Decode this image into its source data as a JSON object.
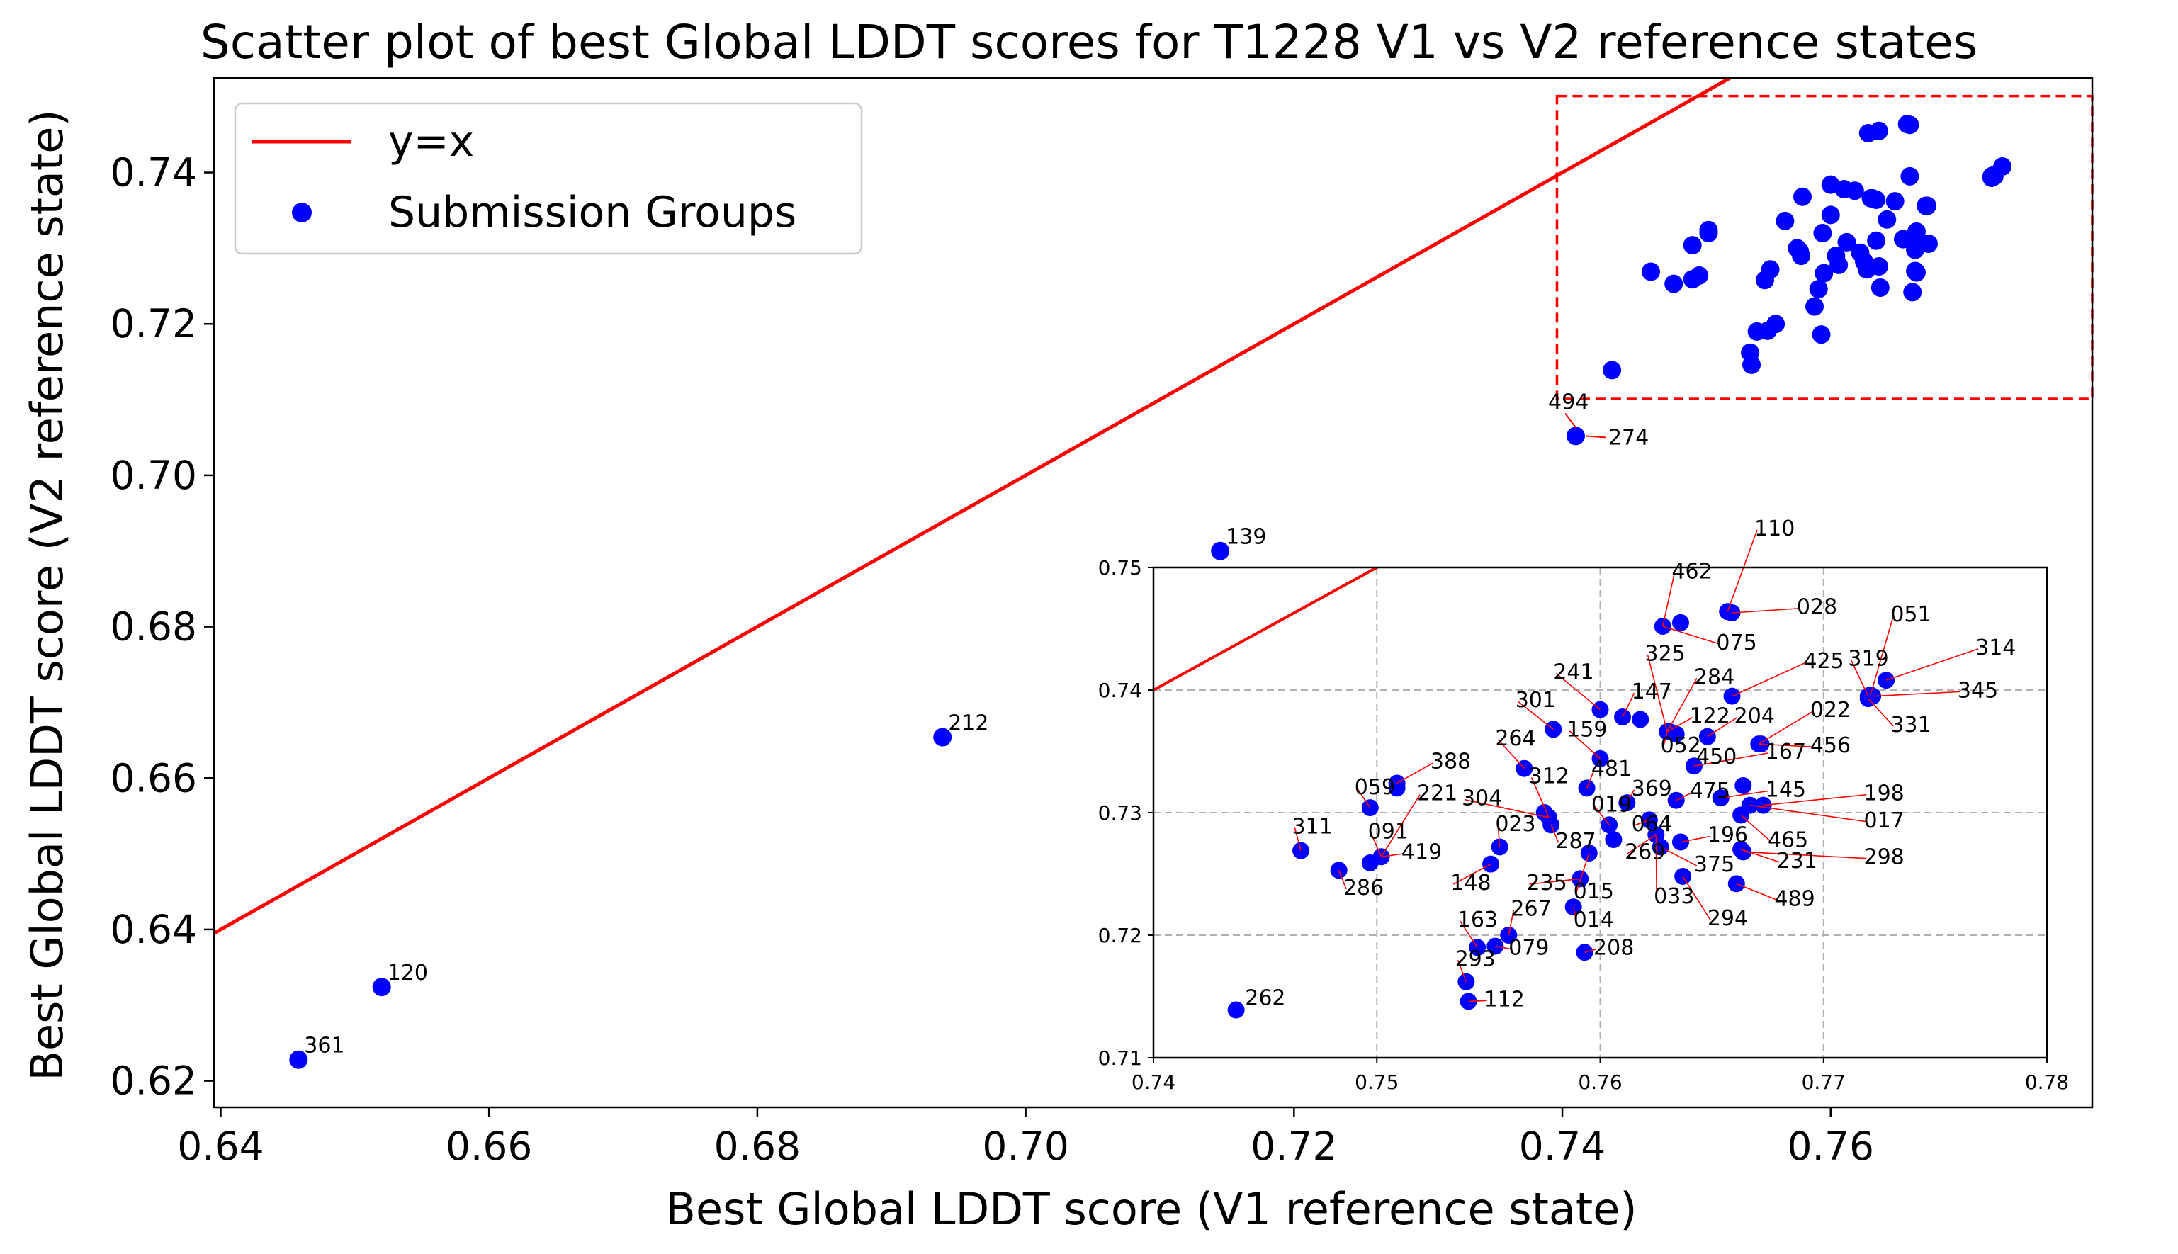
{
  "colors": {
    "points": "#0000ff",
    "line": "#ff0000",
    "box": "#ff0000",
    "grid": "#b0b0b0",
    "annot": "#ff0000"
  },
  "chart_data": {
    "type": "scatter",
    "title": "Scatter plot of best Global LDDT scores for T1228 V1 vs V2 reference states",
    "xlabel": "Best Global LDDT score (V1 reference state)",
    "ylabel": "Best Global LDDT score (V2 reference state)",
    "xlim": [
      0.6395,
      0.7795
    ],
    "ylim": [
      0.6165,
      0.7525
    ],
    "xticks": [
      0.64,
      0.66,
      0.68,
      0.7,
      0.72,
      0.74,
      0.76
    ],
    "yticks": [
      0.62,
      0.64,
      0.66,
      0.68,
      0.7,
      0.72,
      0.74
    ],
    "tick_format": 2,
    "legend": {
      "position": "top-left",
      "line_label": "y=x",
      "points_label": "Submission Groups"
    },
    "zoom_box": {
      "x": [
        0.7396,
        0.7795
      ],
      "y": [
        0.7101,
        0.7501
      ]
    },
    "outliers": [
      {
        "label": "361",
        "x": 0.6458,
        "y": 0.6228
      },
      {
        "label": "120",
        "x": 0.652,
        "y": 0.6324
      },
      {
        "label": "212",
        "x": 0.6938,
        "y": 0.6654
      },
      {
        "label": "139",
        "x": 0.7145,
        "y": 0.69
      },
      {
        "label": "274",
        "x": 0.741,
        "y": 0.7052
      }
    ],
    "outlier_extra_labels": [
      {
        "label": "494",
        "x": 0.74,
        "y": 0.708
      }
    ],
    "inset": {
      "xlim": [
        0.74,
        0.78
      ],
      "ylim": [
        0.71,
        0.75
      ],
      "xticks": [
        0.74,
        0.75,
        0.76,
        0.77,
        0.78
      ],
      "yticks": [
        0.71,
        0.72,
        0.73,
        0.74,
        0.75
      ],
      "grid": true,
      "points": [
        {
          "label": "262",
          "x": 0.7437,
          "y": 0.7139
        },
        {
          "label": "311",
          "x": 0.7466,
          "y": 0.7269
        },
        {
          "label": "286",
          "x": 0.7483,
          "y": 0.7253
        },
        {
          "label": "059",
          "x": 0.7497,
          "y": 0.7304
        },
        {
          "label": "091",
          "x": 0.7497,
          "y": 0.7259
        },
        {
          "label": "419",
          "x": 0.7502,
          "y": 0.7264
        },
        {
          "label": "388",
          "x": 0.7509,
          "y": 0.7324
        },
        {
          "label": "221",
          "x": 0.7509,
          "y": 0.732
        },
        {
          "label": "293",
          "x": 0.754,
          "y": 0.7162
        },
        {
          "label": "112",
          "x": 0.7541,
          "y": 0.7146
        },
        {
          "label": "163",
          "x": 0.7545,
          "y": 0.719
        },
        {
          "label": "079",
          "x": 0.7553,
          "y": 0.7191
        },
        {
          "label": "267",
          "x": 0.7559,
          "y": 0.72
        },
        {
          "label": "148",
          "x": 0.7551,
          "y": 0.7258
        },
        {
          "label": "023",
          "x": 0.7555,
          "y": 0.7272
        },
        {
          "label": "264",
          "x": 0.7566,
          "y": 0.7336
        },
        {
          "label": "312",
          "x": 0.7575,
          "y": 0.73
        },
        {
          "label": "304",
          "x": 0.7577,
          "y": 0.7296
        },
        {
          "label": "287",
          "x": 0.7578,
          "y": 0.729
        },
        {
          "label": "301",
          "x": 0.7579,
          "y": 0.7368
        },
        {
          "label": "014",
          "x": 0.7588,
          "y": 0.7223
        },
        {
          "label": "235",
          "x": 0.7591,
          "y": 0.7246
        },
        {
          "label": "208",
          "x": 0.7593,
          "y": 0.7186
        },
        {
          "label": "481",
          "x": 0.7594,
          "y": 0.732
        },
        {
          "label": "015",
          "x": 0.7595,
          "y": 0.7267
        },
        {
          "label": "241",
          "x": 0.76,
          "y": 0.7384
        },
        {
          "label": "159",
          "x": 0.76,
          "y": 0.7344
        },
        {
          "label": "019",
          "x": 0.7604,
          "y": 0.729
        },
        {
          "label": "369",
          "x": 0.7606,
          "y": 0.7278
        },
        {
          "label": "147",
          "x": 0.761,
          "y": 0.7378
        },
        {
          "label": "269",
          "x": 0.7612,
          "y": 0.7308
        },
        {
          "label": "325",
          "x": 0.7618,
          "y": 0.7376
        },
        {
          "label": "064",
          "x": 0.7622,
          "y": 0.7294
        },
        {
          "label": "033",
          "x": 0.7625,
          "y": 0.7282
        },
        {
          "label": "052",
          "x": 0.763,
          "y": 0.7366
        },
        {
          "label": "284",
          "x": 0.7631,
          "y": 0.7366
        },
        {
          "label": "375",
          "x": 0.7627,
          "y": 0.7272
        },
        {
          "label": "122",
          "x": 0.7634,
          "y": 0.7364
        },
        {
          "label": "475",
          "x": 0.7634,
          "y": 0.731
        },
        {
          "label": "075",
          "x": 0.7628,
          "y": 0.7452
        },
        {
          "label": "462",
          "x": 0.7636,
          "y": 0.7455
        },
        {
          "label": "196",
          "x": 0.7636,
          "y": 0.7276
        },
        {
          "label": "294",
          "x": 0.7637,
          "y": 0.7248
        },
        {
          "label": "450",
          "x": 0.7642,
          "y": 0.7338
        },
        {
          "label": "204",
          "x": 0.7648,
          "y": 0.7362
        },
        {
          "label": "145",
          "x": 0.7654,
          "y": 0.7312
        },
        {
          "label": "465",
          "x": 0.7663,
          "y": 0.7298
        },
        {
          "label": "110",
          "x": 0.7657,
          "y": 0.7464
        },
        {
          "label": "028",
          "x": 0.7659,
          "y": 0.7463
        },
        {
          "label": "425",
          "x": 0.7659,
          "y": 0.7395
        },
        {
          "label": "489",
          "x": 0.7661,
          "y": 0.7242
        },
        {
          "label": "231",
          "x": 0.7663,
          "y": 0.727
        },
        {
          "label": "167",
          "x": 0.7664,
          "y": 0.7322
        },
        {
          "label": "017",
          "x": 0.7667,
          "y": 0.7306
        },
        {
          "label": "456",
          "x": 0.7671,
          "y": 0.7356
        },
        {
          "label": "022",
          "x": 0.7672,
          "y": 0.7356
        },
        {
          "label": "198",
          "x": 0.7673,
          "y": 0.7306
        },
        {
          "label": "298",
          "x": 0.7664,
          "y": 0.7268
        },
        {
          "label": "319",
          "x": 0.772,
          "y": 0.7395
        },
        {
          "label": "331",
          "x": 0.772,
          "y": 0.7393
        },
        {
          "label": "051",
          "x": 0.7721,
          "y": 0.7396
        },
        {
          "label": "345",
          "x": 0.7722,
          "y": 0.7395
        },
        {
          "label": "314",
          "x": 0.7728,
          "y": 0.7408
        }
      ],
      "labels": [
        {
          "text": "262",
          "x": 0.7441,
          "y": 0.7143,
          "tx": 0.7441,
          "ty": 0.7143
        },
        {
          "text": "311",
          "x": 0.7462,
          "y": 0.7283,
          "tx": 0.7466,
          "ty": 0.7269
        },
        {
          "text": "286",
          "x": 0.7485,
          "y": 0.7233,
          "tx": 0.7483,
          "ty": 0.7253
        },
        {
          "text": "059",
          "x": 0.749,
          "y": 0.7315,
          "tx": 0.7497,
          "ty": 0.7304
        },
        {
          "text": "388",
          "x": 0.7524,
          "y": 0.7336,
          "tx": 0.7509,
          "ty": 0.7324
        },
        {
          "text": "221",
          "x": 0.7518,
          "y": 0.731,
          "tx": 0.7502,
          "ty": 0.7264
        },
        {
          "text": "091",
          "x": 0.7496,
          "y": 0.7279,
          "tx": 0.7502,
          "ty": 0.7264
        },
        {
          "text": "419",
          "x": 0.7511,
          "y": 0.7262,
          "tx": 0.7502,
          "ty": 0.7264
        },
        {
          "text": "148",
          "x": 0.7533,
          "y": 0.7237,
          "tx": 0.7551,
          "ty": 0.7258
        },
        {
          "text": "023",
          "x": 0.7553,
          "y": 0.7285,
          "tx": 0.7555,
          "ty": 0.7272
        },
        {
          "text": "264",
          "x": 0.7553,
          "y": 0.7355,
          "tx": 0.7566,
          "ty": 0.7336
        },
        {
          "text": "312",
          "x": 0.7568,
          "y": 0.7324,
          "tx": 0.7577,
          "ty": 0.7296
        },
        {
          "text": "304",
          "x": 0.7538,
          "y": 0.7306,
          "tx": 0.7577,
          "ty": 0.7296
        },
        {
          "text": "287",
          "x": 0.758,
          "y": 0.7271,
          "tx": 0.7578,
          "ty": 0.729
        },
        {
          "text": "301",
          "x": 0.7562,
          "y": 0.7386,
          "tx": 0.7579,
          "ty": 0.7368
        },
        {
          "text": "241",
          "x": 0.7579,
          "y": 0.7409,
          "tx": 0.76,
          "ty": 0.7384
        },
        {
          "text": "235",
          "x": 0.7567,
          "y": 0.7237,
          "tx": 0.7591,
          "ty": 0.7246
        },
        {
          "text": "015",
          "x": 0.7588,
          "y": 0.723,
          "tx": 0.7595,
          "ty": 0.7267
        },
        {
          "text": "014",
          "x": 0.7588,
          "y": 0.7207,
          "tx": 0.7588,
          "ty": 0.7223
        },
        {
          "text": "208",
          "x": 0.7597,
          "y": 0.7184,
          "tx": 0.7593,
          "ty": 0.7186
        },
        {
          "text": "163",
          "x": 0.7536,
          "y": 0.7207,
          "tx": 0.7545,
          "ty": 0.719
        },
        {
          "text": "267",
          "x": 0.756,
          "y": 0.7216,
          "tx": 0.7559,
          "ty": 0.72
        },
        {
          "text": "079",
          "x": 0.7559,
          "y": 0.7184,
          "tx": 0.7553,
          "ty": 0.7191
        },
        {
          "text": "293",
          "x": 0.7535,
          "y": 0.7175,
          "tx": 0.754,
          "ty": 0.7162
        },
        {
          "text": "112",
          "x": 0.7548,
          "y": 0.7142,
          "tx": 0.7541,
          "ty": 0.7146
        },
        {
          "text": "159",
          "x": 0.7585,
          "y": 0.7362,
          "tx": 0.76,
          "ty": 0.7344
        },
        {
          "text": "481",
          "x": 0.7596,
          "y": 0.733,
          "tx": 0.7594,
          "ty": 0.732
        },
        {
          "text": "019",
          "x": 0.7596,
          "y": 0.7301,
          "tx": 0.7604,
          "ty": 0.729
        },
        {
          "text": "147",
          "x": 0.7614,
          "y": 0.7393,
          "tx": 0.761,
          "ty": 0.7378
        },
        {
          "text": "325",
          "x": 0.762,
          "y": 0.7424,
          "tx": 0.763,
          "ty": 0.7366
        },
        {
          "text": "284",
          "x": 0.7642,
          "y": 0.7405,
          "tx": 0.763,
          "ty": 0.7366
        },
        {
          "text": "122",
          "x": 0.764,
          "y": 0.7373,
          "tx": 0.763,
          "ty": 0.7366
        },
        {
          "text": "052",
          "x": 0.7627,
          "y": 0.7349,
          "tx": 0.763,
          "ty": 0.7366
        },
        {
          "text": "204",
          "x": 0.766,
          "y": 0.7373,
          "tx": 0.7648,
          "ty": 0.7362
        },
        {
          "text": "369",
          "x": 0.7614,
          "y": 0.7314,
          "tx": 0.7612,
          "ty": 0.7308
        },
        {
          "text": "475",
          "x": 0.764,
          "y": 0.7312,
          "tx": 0.7634,
          "ty": 0.731
        },
        {
          "text": "064",
          "x": 0.7614,
          "y": 0.7285,
          "tx": 0.7622,
          "ty": 0.7294
        },
        {
          "text": "269",
          "x": 0.7611,
          "y": 0.7262,
          "tx": 0.7625,
          "ty": 0.7282
        },
        {
          "text": "033",
          "x": 0.7624,
          "y": 0.7226,
          "tx": 0.7625,
          "ty": 0.7282
        },
        {
          "text": "375",
          "x": 0.7642,
          "y": 0.7252,
          "tx": 0.7627,
          "ty": 0.7272
        },
        {
          "text": "196",
          "x": 0.7648,
          "y": 0.7276,
          "tx": 0.7636,
          "ty": 0.7276
        },
        {
          "text": "294",
          "x": 0.7648,
          "y": 0.7208,
          "tx": 0.7637,
          "ty": 0.7248
        },
        {
          "text": "450",
          "x": 0.7643,
          "y": 0.734,
          "tx": 0.7642,
          "ty": 0.7338
        },
        {
          "text": "167",
          "x": 0.7674,
          "y": 0.7344,
          "tx": 0.7642,
          "ty": 0.7338
        },
        {
          "text": "456",
          "x": 0.7694,
          "y": 0.7349,
          "tx": 0.7671,
          "ty": 0.7356
        },
        {
          "text": "022",
          "x": 0.7694,
          "y": 0.7378,
          "tx": 0.7671,
          "ty": 0.7356
        },
        {
          "text": "145",
          "x": 0.7674,
          "y": 0.7313,
          "tx": 0.7654,
          "ty": 0.7312
        },
        {
          "text": "465",
          "x": 0.7675,
          "y": 0.7272,
          "tx": 0.7663,
          "ty": 0.7298
        },
        {
          "text": "231",
          "x": 0.7679,
          "y": 0.7255,
          "tx": 0.7663,
          "ty": 0.727
        },
        {
          "text": "489",
          "x": 0.7678,
          "y": 0.7224,
          "tx": 0.7661,
          "ty": 0.7242
        },
        {
          "text": "298",
          "x": 0.7718,
          "y": 0.7258,
          "tx": 0.7664,
          "ty": 0.7268
        },
        {
          "text": "198",
          "x": 0.7718,
          "y": 0.731,
          "tx": 0.7673,
          "ty": 0.7306
        },
        {
          "text": "017",
          "x": 0.7718,
          "y": 0.7288,
          "tx": 0.7667,
          "ty": 0.7306
        },
        {
          "text": "425",
          "x": 0.7691,
          "y": 0.7418,
          "tx": 0.7659,
          "ty": 0.7395
        },
        {
          "text": "462",
          "x": 0.7632,
          "y": 0.7491,
          "tx": 0.7628,
          "ty": 0.7452
        },
        {
          "text": "075",
          "x": 0.7652,
          "y": 0.7433,
          "tx": 0.7628,
          "ty": 0.7452
        },
        {
          "text": "110",
          "x": 0.7669,
          "y": 0.7526,
          "tx": 0.7657,
          "ty": 0.7464
        },
        {
          "text": "028",
          "x": 0.7688,
          "y": 0.7462,
          "tx": 0.7659,
          "ty": 0.7463
        },
        {
          "text": "051",
          "x": 0.773,
          "y": 0.7456,
          "tx": 0.7721,
          "ty": 0.7396
        },
        {
          "text": "319",
          "x": 0.7711,
          "y": 0.742,
          "tx": 0.772,
          "ty": 0.7395
        },
        {
          "text": "314",
          "x": 0.7768,
          "y": 0.7429,
          "tx": 0.7728,
          "ty": 0.7408
        },
        {
          "text": "345",
          "x": 0.776,
          "y": 0.7394,
          "tx": 0.7722,
          "ty": 0.7395
        },
        {
          "text": "331",
          "x": 0.773,
          "y": 0.7366,
          "tx": 0.772,
          "ty": 0.7393
        }
      ]
    }
  }
}
